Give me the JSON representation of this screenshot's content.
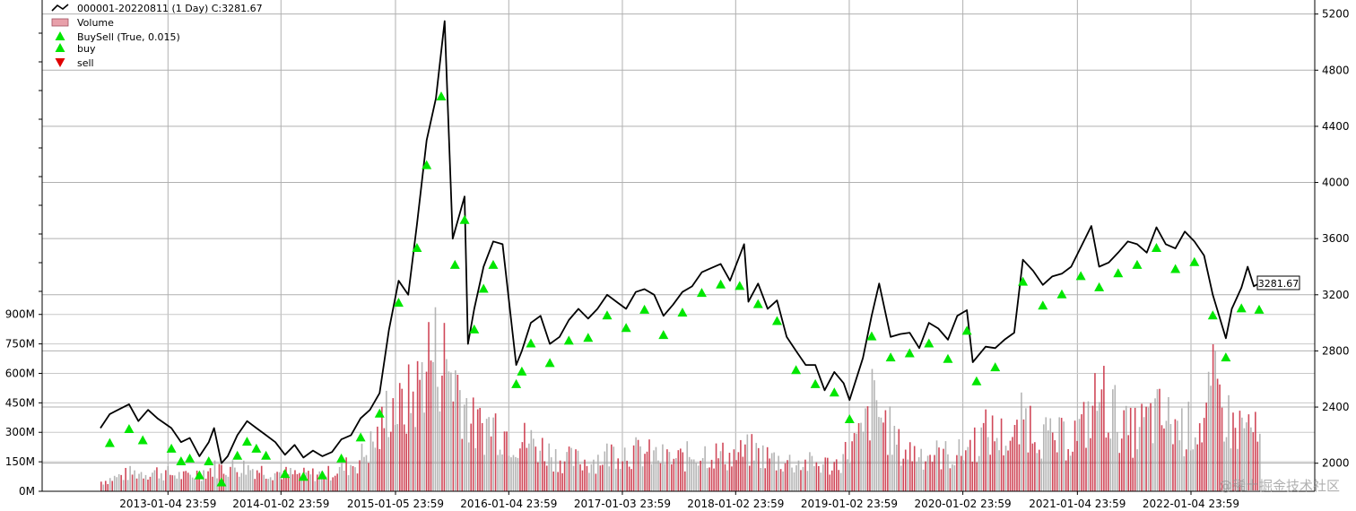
{
  "chart_data": {
    "type": "line",
    "legend": {
      "placement": "top-left",
      "entries": [
        {
          "label": "000001-20220811 (1 Day) C:3281.67",
          "marker": "line",
          "color": "#000000"
        },
        {
          "label": "Volume",
          "marker": "bar",
          "color": "#e8a0aa"
        },
        {
          "label": "BuySell (True, 0.015)",
          "marker": "up-triangle",
          "color": "#00e600"
        },
        {
          "label": "buy",
          "marker": "up-triangle",
          "color": "#00e600"
        },
        {
          "label": "sell",
          "marker": "down-triangle",
          "color": "#e00000"
        }
      ]
    },
    "x_tick_labels": [
      "2013-01-04 23:59",
      "2014-01-02 23:59",
      "2015-01-05 23:59",
      "2016-01-04 23:59",
      "2017-01-03 23:59",
      "2018-01-02 23:59",
      "2019-01-02 23:59",
      "2020-01-02 23:59",
      "2021-01-04 23:59",
      "2022-01-04 23:59"
    ],
    "x_range": [
      "2012-06-01",
      "2022-08-11"
    ],
    "price_axis": {
      "side": "right",
      "ylim": [
        1800,
        5300
      ],
      "ticks": [
        2000,
        2400,
        2800,
        3200,
        3600,
        4000,
        4400,
        4800,
        5200
      ],
      "labels": [
        "2000",
        "2400",
        "2800",
        "3200",
        "3600",
        "4000",
        "4400",
        "4800",
        "5200"
      ]
    },
    "volume_axis": {
      "side": "left",
      "ylim": [
        0,
        2500
      ],
      "ticks": [
        0,
        150,
        300,
        450,
        600,
        750,
        900
      ],
      "labels": [
        "0M",
        "150M",
        "300M",
        "450M",
        "600M",
        "750M",
        "900M"
      ]
    },
    "grid": true,
    "last_value_label": "3281.67",
    "series": [
      {
        "name": "000001-20220811 (1 Day) C:3281.67",
        "kind": "price-line",
        "color": "#000000",
        "points": [
          [
            "2012-06-01",
            2250
          ],
          [
            "2012-07-01",
            2350
          ],
          [
            "2012-09-01",
            2420
          ],
          [
            "2012-10-01",
            2300
          ],
          [
            "2012-11-01",
            2380
          ],
          [
            "2012-12-01",
            2320
          ],
          [
            "2013-01-15",
            2250
          ],
          [
            "2013-02-15",
            2150
          ],
          [
            "2013-03-15",
            2180
          ],
          [
            "2013-04-15",
            2050
          ],
          [
            "2013-05-15",
            2150
          ],
          [
            "2013-06-01",
            2250
          ],
          [
            "2013-06-25",
            2000
          ],
          [
            "2013-07-15",
            2050
          ],
          [
            "2013-08-15",
            2200
          ],
          [
            "2013-09-15",
            2300
          ],
          [
            "2013-10-15",
            2250
          ],
          [
            "2013-11-15",
            2200
          ],
          [
            "2013-12-15",
            2150
          ],
          [
            "2014-01-15",
            2060
          ],
          [
            "2014-02-15",
            2130
          ],
          [
            "2014-03-15",
            2040
          ],
          [
            "2014-04-15",
            2090
          ],
          [
            "2014-05-15",
            2050
          ],
          [
            "2014-06-15",
            2080
          ],
          [
            "2014-07-15",
            2170
          ],
          [
            "2014-08-15",
            2200
          ],
          [
            "2014-09-15",
            2320
          ],
          [
            "2014-10-15",
            2380
          ],
          [
            "2014-11-15",
            2500
          ],
          [
            "2014-12-15",
            2950
          ],
          [
            "2015-01-15",
            3300
          ],
          [
            "2015-02-15",
            3200
          ],
          [
            "2015-03-15",
            3700
          ],
          [
            "2015-04-15",
            4300
          ],
          [
            "2015-05-15",
            4600
          ],
          [
            "2015-06-12",
            5150
          ],
          [
            "2015-07-08",
            3600
          ],
          [
            "2015-08-15",
            3900
          ],
          [
            "2015-08-26",
            2850
          ],
          [
            "2015-09-15",
            3100
          ],
          [
            "2015-10-15",
            3400
          ],
          [
            "2015-11-15",
            3580
          ],
          [
            "2015-12-15",
            3560
          ],
          [
            "2016-01-28",
            2700
          ],
          [
            "2016-02-15",
            2800
          ],
          [
            "2016-03-15",
            3000
          ],
          [
            "2016-04-15",
            3050
          ],
          [
            "2016-05-15",
            2850
          ],
          [
            "2016-06-15",
            2900
          ],
          [
            "2016-07-15",
            3020
          ],
          [
            "2016-08-15",
            3100
          ],
          [
            "2016-09-15",
            3030
          ],
          [
            "2016-10-15",
            3100
          ],
          [
            "2016-11-15",
            3200
          ],
          [
            "2016-12-15",
            3150
          ],
          [
            "2017-01-15",
            3100
          ],
          [
            "2017-02-15",
            3220
          ],
          [
            "2017-03-15",
            3240
          ],
          [
            "2017-04-15",
            3200
          ],
          [
            "2017-05-15",
            3050
          ],
          [
            "2017-06-15",
            3130
          ],
          [
            "2017-07-15",
            3220
          ],
          [
            "2017-08-15",
            3260
          ],
          [
            "2017-09-15",
            3360
          ],
          [
            "2017-10-15",
            3390
          ],
          [
            "2017-11-15",
            3420
          ],
          [
            "2017-12-15",
            3300
          ],
          [
            "2018-01-29",
            3560
          ],
          [
            "2018-02-12",
            3150
          ],
          [
            "2018-03-15",
            3280
          ],
          [
            "2018-04-15",
            3100
          ],
          [
            "2018-05-15",
            3160
          ],
          [
            "2018-06-15",
            2900
          ],
          [
            "2018-07-15",
            2800
          ],
          [
            "2018-08-15",
            2700
          ],
          [
            "2018-09-15",
            2700
          ],
          [
            "2018-10-15",
            2520
          ],
          [
            "2018-11-15",
            2650
          ],
          [
            "2018-12-15",
            2570
          ],
          [
            "2019-01-03",
            2450
          ],
          [
            "2019-02-15",
            2750
          ],
          [
            "2019-03-15",
            3050
          ],
          [
            "2019-04-08",
            3280
          ],
          [
            "2019-05-15",
            2900
          ],
          [
            "2019-06-15",
            2920
          ],
          [
            "2019-07-15",
            2930
          ],
          [
            "2019-08-15",
            2820
          ],
          [
            "2019-09-15",
            3000
          ],
          [
            "2019-10-15",
            2960
          ],
          [
            "2019-11-15",
            2880
          ],
          [
            "2019-12-15",
            3050
          ],
          [
            "2020-01-15",
            3090
          ],
          [
            "2020-02-03",
            2720
          ],
          [
            "2020-03-15",
            2830
          ],
          [
            "2020-04-15",
            2820
          ],
          [
            "2020-05-15",
            2880
          ],
          [
            "2020-06-15",
            2930
          ],
          [
            "2020-07-13",
            3450
          ],
          [
            "2020-08-15",
            3370
          ],
          [
            "2020-09-15",
            3270
          ],
          [
            "2020-10-15",
            3330
          ],
          [
            "2020-11-15",
            3350
          ],
          [
            "2020-12-15",
            3400
          ],
          [
            "2021-02-18",
            3690
          ],
          [
            "2021-03-15",
            3400
          ],
          [
            "2021-04-15",
            3430
          ],
          [
            "2021-05-15",
            3500
          ],
          [
            "2021-06-15",
            3580
          ],
          [
            "2021-07-15",
            3560
          ],
          [
            "2021-08-15",
            3500
          ],
          [
            "2021-09-15",
            3680
          ],
          [
            "2021-10-15",
            3560
          ],
          [
            "2021-11-15",
            3530
          ],
          [
            "2021-12-15",
            3650
          ],
          [
            "2022-01-15",
            3580
          ],
          [
            "2022-02-15",
            3480
          ],
          [
            "2022-03-15",
            3200
          ],
          [
            "2022-04-26",
            2890
          ],
          [
            "2022-05-15",
            3100
          ],
          [
            "2022-06-15",
            3250
          ],
          [
            "2022-07-05",
            3400
          ],
          [
            "2022-07-25",
            3260
          ],
          [
            "2022-08-11",
            3281.67
          ]
        ]
      },
      {
        "name": "buy",
        "kind": "markers",
        "color": "#00e600",
        "points": [
          [
            "2012-07-01",
            2230
          ],
          [
            "2012-09-01",
            2330
          ],
          [
            "2012-10-15",
            2250
          ],
          [
            "2013-01-15",
            2190
          ],
          [
            "2013-02-15",
            2100
          ],
          [
            "2013-03-15",
            2120
          ],
          [
            "2013-04-15",
            2000
          ],
          [
            "2013-05-15",
            2100
          ],
          [
            "2013-06-25",
            1950
          ],
          [
            "2013-08-15",
            2140
          ],
          [
            "2013-09-15",
            2240
          ],
          [
            "2013-10-15",
            2190
          ],
          [
            "2013-11-15",
            2140
          ],
          [
            "2014-01-15",
            2010
          ],
          [
            "2014-03-15",
            1990
          ],
          [
            "2014-05-15",
            2000
          ],
          [
            "2014-07-15",
            2120
          ],
          [
            "2014-09-15",
            2270
          ],
          [
            "2014-11-15",
            2440
          ],
          [
            "2015-01-15",
            3230
          ],
          [
            "2015-03-15",
            3620
          ],
          [
            "2015-04-15",
            4210
          ],
          [
            "2015-06-01",
            4700
          ],
          [
            "2015-07-15",
            3500
          ],
          [
            "2015-08-15",
            3820
          ],
          [
            "2015-09-15",
            3040
          ],
          [
            "2015-10-15",
            3330
          ],
          [
            "2015-11-15",
            3500
          ],
          [
            "2016-01-28",
            2650
          ],
          [
            "2016-02-15",
            2740
          ],
          [
            "2016-03-15",
            2940
          ],
          [
            "2016-05-15",
            2800
          ],
          [
            "2016-07-15",
            2960
          ],
          [
            "2016-09-15",
            2980
          ],
          [
            "2016-11-15",
            3140
          ],
          [
            "2017-01-15",
            3050
          ],
          [
            "2017-03-15",
            3180
          ],
          [
            "2017-05-15",
            3000
          ],
          [
            "2017-07-15",
            3160
          ],
          [
            "2017-09-15",
            3300
          ],
          [
            "2017-11-15",
            3360
          ],
          [
            "2018-01-15",
            3350
          ],
          [
            "2018-03-15",
            3220
          ],
          [
            "2018-05-15",
            3100
          ],
          [
            "2018-07-15",
            2750
          ],
          [
            "2018-09-15",
            2650
          ],
          [
            "2018-11-15",
            2590
          ],
          [
            "2019-01-03",
            2400
          ],
          [
            "2019-03-15",
            2990
          ],
          [
            "2019-05-15",
            2840
          ],
          [
            "2019-07-15",
            2870
          ],
          [
            "2019-09-15",
            2940
          ],
          [
            "2019-11-15",
            2830
          ],
          [
            "2020-01-15",
            3030
          ],
          [
            "2020-02-15",
            2670
          ],
          [
            "2020-04-15",
            2770
          ],
          [
            "2020-07-13",
            3380
          ],
          [
            "2020-09-15",
            3210
          ],
          [
            "2020-11-15",
            3290
          ],
          [
            "2021-01-15",
            3420
          ],
          [
            "2021-03-15",
            3340
          ],
          [
            "2021-05-15",
            3440
          ],
          [
            "2021-07-15",
            3500
          ],
          [
            "2021-09-15",
            3620
          ],
          [
            "2021-11-15",
            3470
          ],
          [
            "2022-01-15",
            3520
          ],
          [
            "2022-03-15",
            3140
          ],
          [
            "2022-04-26",
            2840
          ],
          [
            "2022-06-15",
            3190
          ],
          [
            "2022-08-11",
            3180
          ]
        ]
      },
      {
        "name": "sell",
        "kind": "markers",
        "color": "#e00000",
        "points": []
      },
      {
        "name": "Volume",
        "kind": "bars",
        "color_up": "#c8283c",
        "color_down": "#a8a8a8",
        "points": [
          [
            "2012-06-01",
            60,
            0
          ],
          [
            "2012-09-01",
            110,
            1
          ],
          [
            "2012-12-01",
            120,
            0
          ],
          [
            "2013-03-01",
            90,
            1
          ],
          [
            "2013-06-01",
            140,
            0
          ],
          [
            "2013-09-01",
            150,
            1
          ],
          [
            "2013-12-01",
            120,
            0
          ],
          [
            "2014-03-01",
            100,
            1
          ],
          [
            "2014-06-01",
            110,
            0
          ],
          [
            "2014-09-01",
            180,
            1
          ],
          [
            "2014-11-15",
            350,
            0
          ],
          [
            "2014-12-15",
            560,
            1
          ],
          [
            "2015-01-15",
            480,
            0
          ],
          [
            "2015-03-15",
            620,
            1
          ],
          [
            "2015-04-15",
            850,
            0
          ],
          [
            "2015-06-01",
            830,
            1
          ],
          [
            "2015-07-15",
            700,
            0
          ],
          [
            "2015-09-15",
            380,
            1
          ],
          [
            "2015-11-15",
            420,
            0
          ],
          [
            "2016-01-15",
            330,
            1
          ],
          [
            "2016-03-15",
            300,
            0
          ],
          [
            "2016-06-15",
            200,
            1
          ],
          [
            "2016-09-15",
            180,
            0
          ],
          [
            "2016-12-15",
            250,
            1
          ],
          [
            "2017-03-15",
            230,
            0
          ],
          [
            "2017-06-15",
            190,
            1
          ],
          [
            "2017-09-15",
            240,
            0
          ],
          [
            "2017-12-15",
            210,
            1
          ],
          [
            "2018-02-15",
            250,
            0
          ],
          [
            "2018-05-15",
            190,
            1
          ],
          [
            "2018-08-15",
            170,
            0
          ],
          [
            "2018-11-15",
            160,
            1
          ],
          [
            "2019-02-15",
            350,
            0
          ],
          [
            "2019-03-15",
            550,
            1
          ],
          [
            "2019-06-15",
            250,
            0
          ],
          [
            "2019-09-15",
            230,
            1
          ],
          [
            "2019-12-15",
            220,
            0
          ],
          [
            "2020-03-15",
            360,
            1
          ],
          [
            "2020-06-15",
            310,
            0
          ],
          [
            "2020-07-13",
            460,
            1
          ],
          [
            "2020-10-15",
            300,
            0
          ],
          [
            "2021-01-15",
            370,
            1
          ],
          [
            "2021-03-15",
            600,
            0
          ],
          [
            "2021-06-15",
            350,
            1
          ],
          [
            "2021-09-15",
            460,
            0
          ],
          [
            "2021-12-15",
            380,
            1
          ],
          [
            "2022-02-15",
            420,
            0
          ],
          [
            "2022-03-15",
            640,
            1
          ],
          [
            "2022-05-15",
            390,
            0
          ],
          [
            "2022-07-15",
            400,
            1
          ],
          [
            "2022-08-11",
            280,
            0
          ]
        ]
      }
    ]
  },
  "watermark": "@稀土掘金技术社区"
}
